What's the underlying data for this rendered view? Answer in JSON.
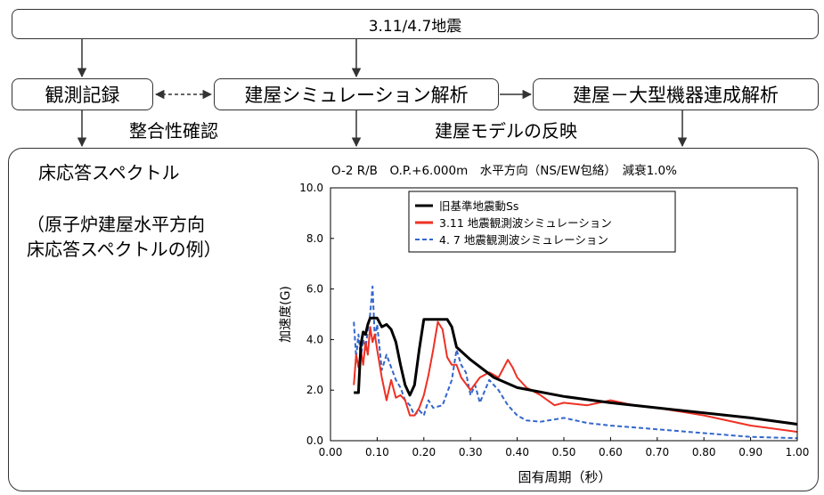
{
  "flow": {
    "top": "3.11/4.7地震",
    "observation": "観測記録",
    "simulation": "建屋シミュレーション解析",
    "coupled": "建屋－大型機器連成解析",
    "consistency": "整合性確認",
    "reflection": "建屋モデルの反映"
  },
  "panel": {
    "title": "床応答スペクトル",
    "example_line1": "（原子炉建屋水平方向",
    "example_line2": "床応答スペクトルの例）"
  },
  "chart_data": {
    "type": "line",
    "title": "O-2 R/B　O.P.+6.000m　水平方向（NS/EW包絡）　減衰1.0%",
    "xlabel": "固有周期（秒）",
    "ylabel": "加速度(G)",
    "xlim": [
      0,
      1.0
    ],
    "ylim": [
      0,
      10.0
    ],
    "x_ticks": [
      "0.00",
      "0.10",
      "0.20",
      "0.30",
      "0.40",
      "0.50",
      "0.60",
      "0.70",
      "0.80",
      "0.90",
      "1.00"
    ],
    "y_ticks": [
      "0.0",
      "2.0",
      "4.0",
      "6.0",
      "8.0",
      "10.0"
    ],
    "x_tick_values": [
      0,
      0.1,
      0.2,
      0.3,
      0.4,
      0.5,
      0.6,
      0.7,
      0.8,
      0.9,
      1.0
    ],
    "y_tick_values": [
      0,
      2,
      4,
      6,
      8,
      10
    ],
    "grid": false,
    "legend_position": "top-left",
    "series": [
      {
        "name": "旧基準地震動Ss",
        "color": "#000000",
        "style": "solid",
        "points": [
          [
            0.05,
            1.9
          ],
          [
            0.06,
            1.9
          ],
          [
            0.065,
            3.8
          ],
          [
            0.07,
            4.3
          ],
          [
            0.075,
            4.2
          ],
          [
            0.08,
            4.6
          ],
          [
            0.085,
            4.85
          ],
          [
            0.1,
            4.85
          ],
          [
            0.11,
            4.5
          ],
          [
            0.12,
            4.6
          ],
          [
            0.13,
            4.4
          ],
          [
            0.14,
            3.9
          ],
          [
            0.15,
            3.0
          ],
          [
            0.16,
            2.2
          ],
          [
            0.17,
            1.8
          ],
          [
            0.18,
            2.2
          ],
          [
            0.19,
            3.6
          ],
          [
            0.2,
            4.8
          ],
          [
            0.25,
            4.8
          ],
          [
            0.26,
            4.5
          ],
          [
            0.27,
            3.7
          ],
          [
            0.3,
            3.2
          ],
          [
            0.35,
            2.5
          ],
          [
            0.4,
            2.1
          ],
          [
            0.5,
            1.75
          ],
          [
            0.6,
            1.5
          ],
          [
            0.7,
            1.3
          ],
          [
            0.8,
            1.1
          ],
          [
            0.9,
            0.9
          ],
          [
            1.0,
            0.65
          ]
        ]
      },
      {
        "name": "3.11 地震観測波シミュレーション",
        "color": "#ee3124",
        "style": "solid",
        "points": [
          [
            0.05,
            2.2
          ],
          [
            0.055,
            3.4
          ],
          [
            0.06,
            2.9
          ],
          [
            0.065,
            3.6
          ],
          [
            0.07,
            3.0
          ],
          [
            0.075,
            3.9
          ],
          [
            0.08,
            3.4
          ],
          [
            0.085,
            4.5
          ],
          [
            0.09,
            3.9
          ],
          [
            0.095,
            4.2
          ],
          [
            0.1,
            3.6
          ],
          [
            0.11,
            2.5
          ],
          [
            0.12,
            1.6
          ],
          [
            0.13,
            2.4
          ],
          [
            0.14,
            1.7
          ],
          [
            0.15,
            1.8
          ],
          [
            0.16,
            1.6
          ],
          [
            0.17,
            1.0
          ],
          [
            0.18,
            1.0
          ],
          [
            0.19,
            1.3
          ],
          [
            0.2,
            1.8
          ],
          [
            0.21,
            2.6
          ],
          [
            0.22,
            3.6
          ],
          [
            0.23,
            4.7
          ],
          [
            0.24,
            4.4
          ],
          [
            0.25,
            3.3
          ],
          [
            0.26,
            3.0
          ],
          [
            0.27,
            3.0
          ],
          [
            0.28,
            2.5
          ],
          [
            0.3,
            2.0
          ],
          [
            0.32,
            2.5
          ],
          [
            0.34,
            2.7
          ],
          [
            0.36,
            2.5
          ],
          [
            0.38,
            3.2
          ],
          [
            0.39,
            2.9
          ],
          [
            0.4,
            2.5
          ],
          [
            0.42,
            2.1
          ],
          [
            0.45,
            1.8
          ],
          [
            0.48,
            1.4
          ],
          [
            0.5,
            1.5
          ],
          [
            0.55,
            1.4
          ],
          [
            0.6,
            1.6
          ],
          [
            0.65,
            1.4
          ],
          [
            0.7,
            1.3
          ],
          [
            0.8,
            1.0
          ],
          [
            0.9,
            0.6
          ],
          [
            1.0,
            0.35
          ]
        ]
      },
      {
        "name": "4. 7 地震観測波シミュレーション",
        "color": "#3366cc",
        "style": "dashed",
        "points": [
          [
            0.05,
            4.7
          ],
          [
            0.055,
            3.3
          ],
          [
            0.06,
            4.2
          ],
          [
            0.065,
            3.3
          ],
          [
            0.07,
            4.0
          ],
          [
            0.075,
            3.6
          ],
          [
            0.08,
            4.4
          ],
          [
            0.085,
            5.0
          ],
          [
            0.09,
            6.1
          ],
          [
            0.095,
            4.0
          ],
          [
            0.1,
            4.6
          ],
          [
            0.11,
            2.8
          ],
          [
            0.12,
            3.4
          ],
          [
            0.13,
            2.9
          ],
          [
            0.14,
            2.4
          ],
          [
            0.15,
            2.1
          ],
          [
            0.16,
            1.6
          ],
          [
            0.17,
            1.4
          ],
          [
            0.18,
            1.0
          ],
          [
            0.19,
            1.2
          ],
          [
            0.2,
            1.0
          ],
          [
            0.21,
            1.6
          ],
          [
            0.22,
            1.3
          ],
          [
            0.24,
            1.4
          ],
          [
            0.26,
            2.4
          ],
          [
            0.27,
            3.6
          ],
          [
            0.28,
            3.0
          ],
          [
            0.29,
            2.7
          ],
          [
            0.3,
            1.8
          ],
          [
            0.31,
            2.2
          ],
          [
            0.32,
            1.5
          ],
          [
            0.34,
            2.4
          ],
          [
            0.36,
            2.0
          ],
          [
            0.38,
            1.4
          ],
          [
            0.4,
            1.0
          ],
          [
            0.42,
            0.8
          ],
          [
            0.45,
            0.75
          ],
          [
            0.5,
            0.9
          ],
          [
            0.55,
            0.7
          ],
          [
            0.6,
            0.6
          ],
          [
            0.7,
            0.45
          ],
          [
            0.8,
            0.3
          ],
          [
            0.9,
            0.15
          ],
          [
            1.0,
            0.1
          ]
        ]
      }
    ]
  },
  "colors": {
    "line": "#333333",
    "black_series": "#000000",
    "red_series": "#ee3124",
    "blue_series": "#3366cc"
  }
}
